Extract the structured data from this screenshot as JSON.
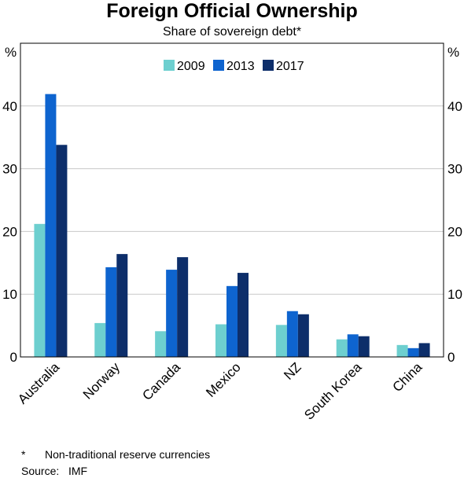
{
  "chart_data": {
    "type": "bar",
    "title": "Foreign Official Ownership",
    "subtitle": "Share of sovereign debt*",
    "unit_left": "%",
    "unit_right": "%",
    "categories": [
      "Australia",
      "Norway",
      "Canada",
      "Mexico",
      "NZ",
      "South Korea",
      "China"
    ],
    "series": [
      {
        "name": "2009",
        "color": "#6dcfcf",
        "values": [
          21.2,
          5.4,
          4.1,
          5.2,
          5.1,
          2.8,
          1.9
        ]
      },
      {
        "name": "2013",
        "color": "#0e64cf",
        "values": [
          41.9,
          14.3,
          13.9,
          11.3,
          7.3,
          3.6,
          1.4
        ]
      },
      {
        "name": "2017",
        "color": "#0d2e6a",
        "values": [
          33.8,
          16.4,
          15.9,
          13.4,
          6.8,
          3.3,
          2.2
        ]
      }
    ],
    "ylim": [
      0,
      50
    ],
    "yticks": [
      "0",
      "10",
      "20",
      "30",
      "40"
    ],
    "grid": true,
    "legend_position": "top-center"
  },
  "footnote": {
    "mark": "*",
    "text": "Non-traditional reserve currencies"
  },
  "source": {
    "label": "Source:",
    "text": "IMF"
  }
}
